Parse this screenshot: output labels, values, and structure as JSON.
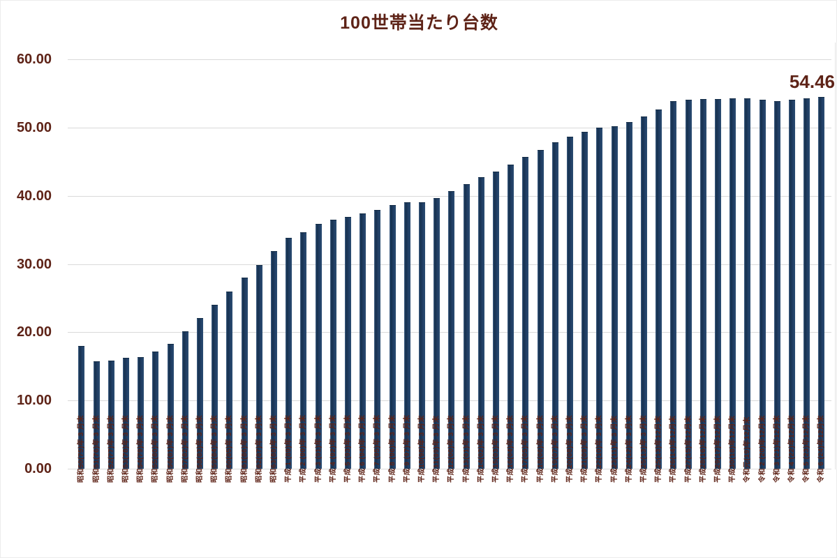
{
  "chart_data": {
    "type": "bar",
    "title": "100世帯当たり台数",
    "xlabel": "",
    "ylabel": "",
    "ylim": [
      0,
      60
    ],
    "y_tick_step": 10,
    "y_tick_labels": [
      "0.00",
      "10.00",
      "20.00",
      "30.00",
      "40.00",
      "50.00",
      "60.00"
    ],
    "grid": true,
    "legend": "none",
    "bar_color": "#1e3b61",
    "text_color": "#5e2317",
    "gridline_color": "#d9d9d9",
    "last_bar_label": "54.46",
    "categories": [
      "昭和50(75)年 3 月末",
      "昭和51(76)年 3 月末",
      "昭和52(77)年 3 月末",
      "昭和53(78)年 3 月末",
      "昭和54(79)年 3 月末",
      "昭和55(80)年 3 月末",
      "昭和56(81)年 3 月末",
      "昭和57(82)年 3 月末",
      "昭和58(83)年 3 月末",
      "昭和59(84)年 3 月末",
      "昭和60(85)年 3 月末",
      "昭和61(86)年 3 月末",
      "昭和62(87)年 3 月末",
      "昭和63(88)年 3 月末",
      "平成 1 (89)年 3 月末",
      "平成 2 (90)年 3 月末",
      "平成 3 (91)年 3 月末",
      "平成 4 (92)年 3 月末",
      "平成 5 (93)年 3 月末",
      "平成 6 (94)年 3 月末",
      "平成 7 (95)年 3 月末",
      "平成 8 (96)年 3 月末",
      "平成 9 (97)年 3 月末",
      "平成10(98)年 3 月末",
      "平成11(99)年 3 月末",
      "平成12(00)年 3 月末",
      "平成13(01)年 3 月末",
      "平成14(02)年 3 月末",
      "平成15(03)年 3 月末",
      "平成16(04)年 3 月末",
      "平成17(05)年 3 月末",
      "平成18(06)年 3 月末",
      "平成19(07)年 3 月末",
      "平成20(08)年 3 月末",
      "平成21(09)年 3 月末",
      "平成22(10)年 3 月末",
      "平成23(11)年 3 月末",
      "平成24(12)年 3 月末",
      "平成25(13)年 3 月末",
      "平成25(13)年12月末",
      "平成26(14)年12月末",
      "平成27(15)年12月末",
      "平成28(16)年12月末",
      "平成29(17)年12月末",
      "平成30(18)年12月末",
      "令和元(19)年12月末",
      "令和 2 (20)年12月末",
      "令和 3 (21)年12月末",
      "令和 4 (22)年12月末",
      "令和 5 (23)年12月末",
      "令和 6 (24)年12月末"
    ],
    "values": [
      18.0,
      15.7,
      15.8,
      16.3,
      16.4,
      17.2,
      18.3,
      20.1,
      22.1,
      24.0,
      26.0,
      28.0,
      29.9,
      31.9,
      33.8,
      34.7,
      35.9,
      36.5,
      36.9,
      37.4,
      37.9,
      38.6,
      39.1,
      39.1,
      39.7,
      40.7,
      41.7,
      42.7,
      43.6,
      44.6,
      45.7,
      46.7,
      47.9,
      48.7,
      49.4,
      50.0,
      50.2,
      50.8,
      51.6,
      52.7,
      53.9,
      54.1,
      54.2,
      54.2,
      54.3,
      54.3,
      54.1,
      53.9,
      54.1,
      54.3,
      54.46
    ]
  }
}
